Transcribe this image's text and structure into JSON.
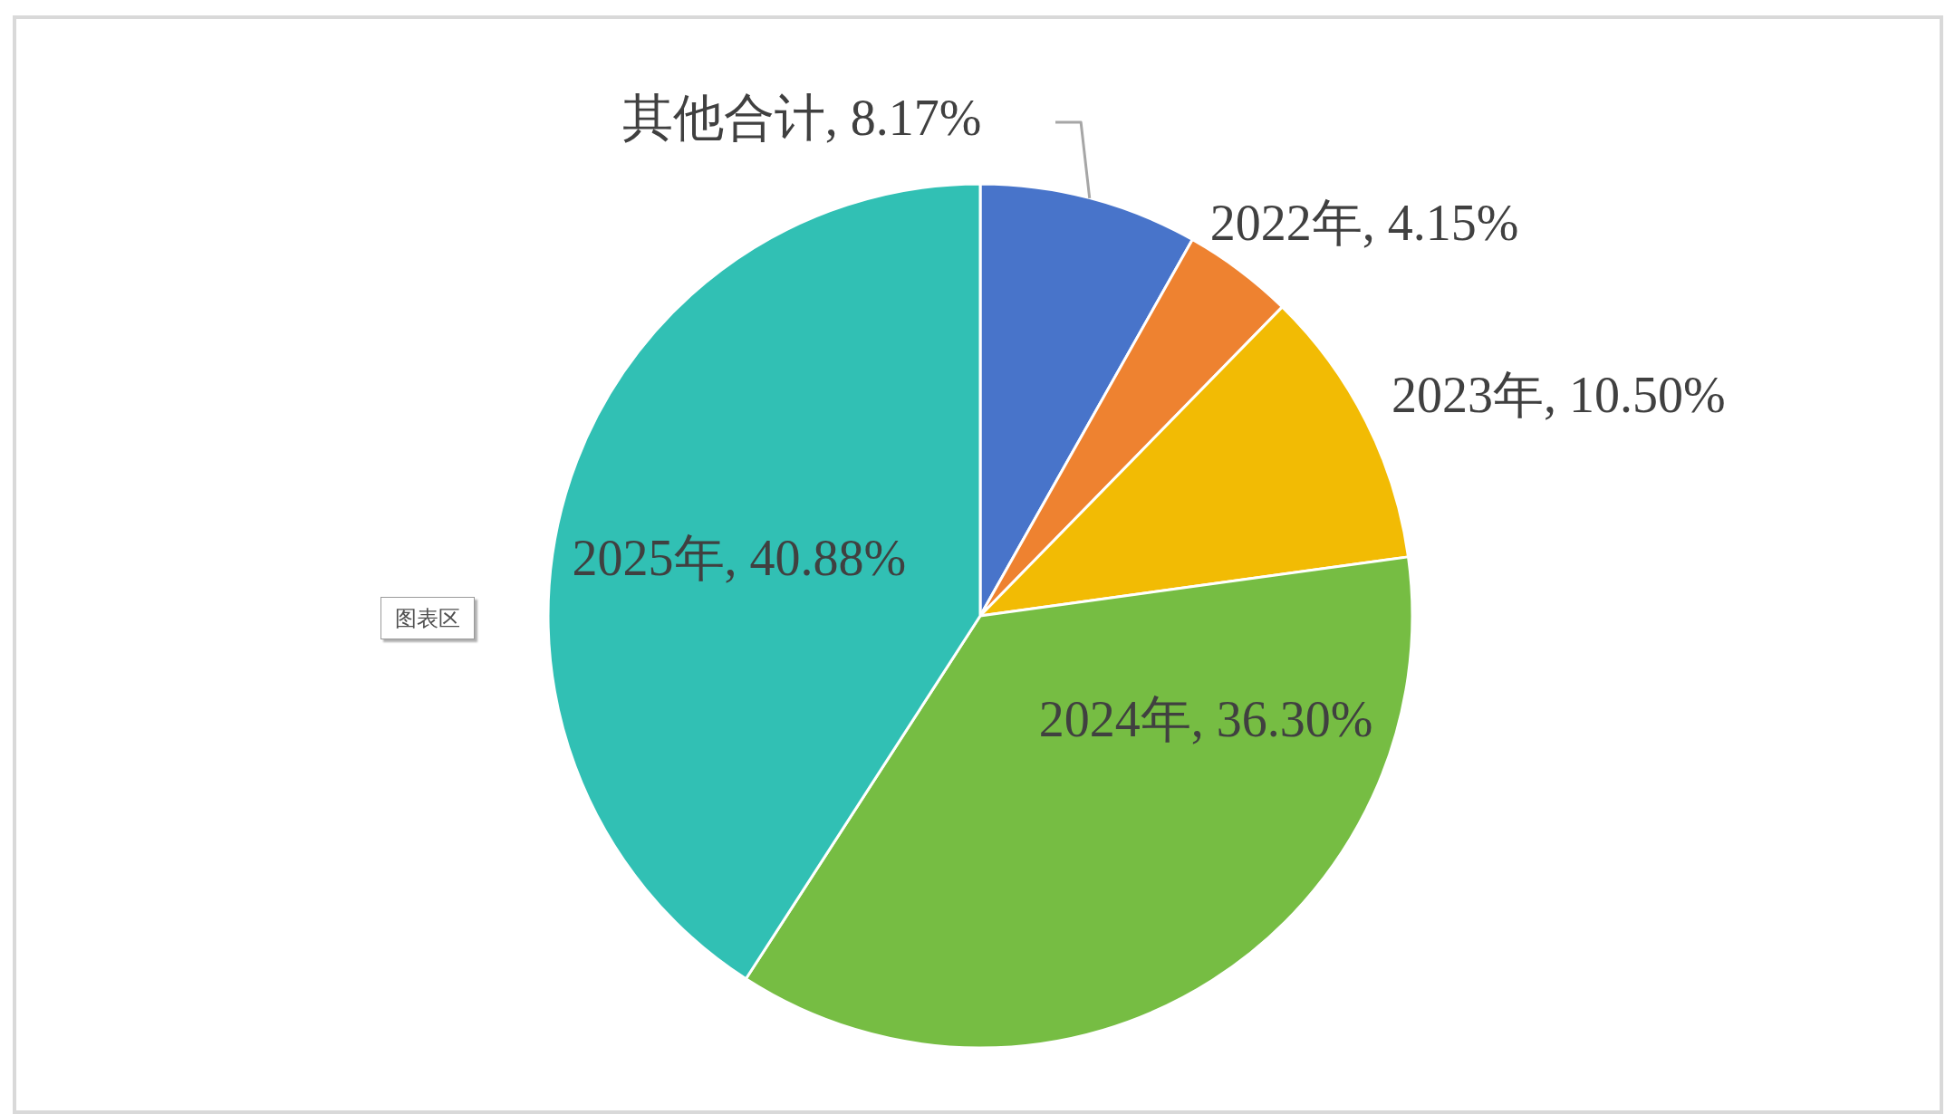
{
  "chart_data": {
    "type": "pie",
    "categories": [
      "其他合计",
      "2022年",
      "2023年",
      "2024年",
      "2025年"
    ],
    "values": [
      8.17,
      4.15,
      10.5,
      36.3,
      40.88
    ],
    "value_labels": [
      "8.17%",
      "4.15%",
      "10.50%",
      "36.30%",
      "40.88%"
    ],
    "colors": [
      "#4874ca",
      "#ee8230",
      "#f2bb04",
      "#76bd43",
      "#31c0b4"
    ],
    "annotations": [
      "图表区"
    ]
  }
}
